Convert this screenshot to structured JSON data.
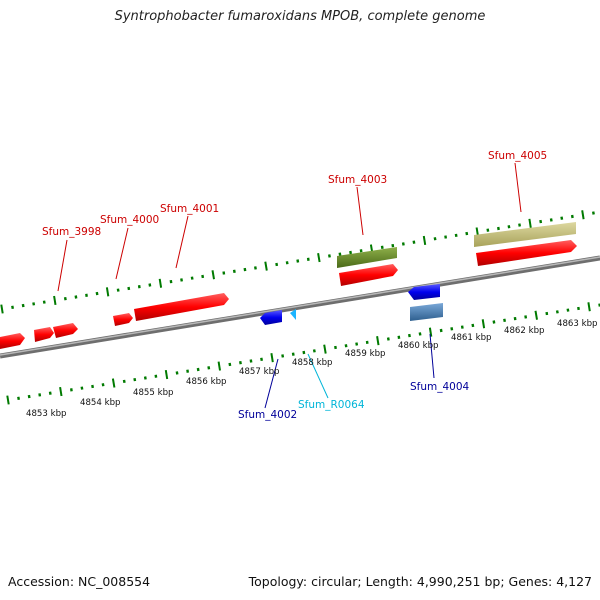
{
  "title": "Syntrophobacter fumaroxidans MPOB, complete genome",
  "accession": "Accession: NC_008554",
  "topology": "Topology: circular; Length: 4,990,251 bp; Genes: 4,127",
  "colors": {
    "cds": "#ff0000",
    "reverse_cds": "#0000ee",
    "tick": "#007a00",
    "backbone": "#8c8c8c",
    "label_red": "#cc0000",
    "label_blue": "#000099",
    "label_cyan": "#00b5d8",
    "olive_feature": "#6b8e23",
    "khaki_feature": "#c8c27a",
    "steelblue_feature": "#4682b4"
  },
  "kbp_labels": [
    "4853 kbp",
    "4854 kbp",
    "4855 kbp",
    "4856 kbp",
    "4857 kbp",
    "4858 kbp",
    "4859 kbp",
    "4860 kbp",
    "4861 kbp",
    "4862 kbp",
    "4863 kbp"
  ],
  "gene_labels": {
    "sfum_3998": "Sfum_3998",
    "sfum_4000": "Sfum_4000",
    "sfum_4001": "Sfum_4001",
    "sfum_4003": "Sfum_4003",
    "sfum_4005": "Sfum_4005",
    "sfum_4002": "Sfum_4002",
    "sfum_r0064": "Sfum_R0064",
    "sfum_4004": "Sfum_4004"
  }
}
